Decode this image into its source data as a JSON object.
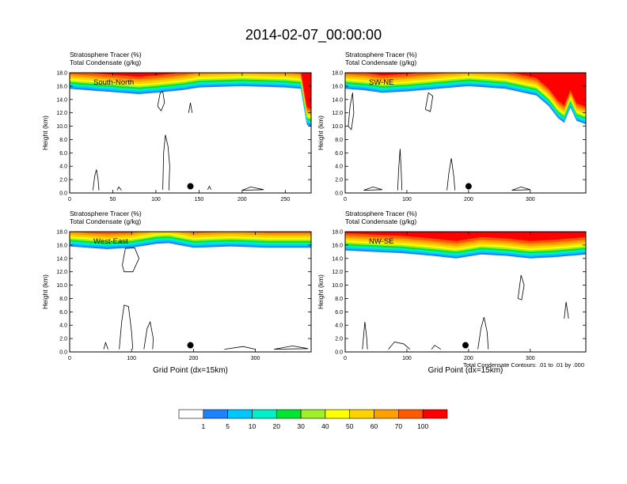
{
  "figure": {
    "title": "2014-02-07_00:00:00",
    "footnote": "Total Condensate Contours: .01 to .01 by .000"
  },
  "legend": {
    "thresholds": [
      "1",
      "5",
      "10",
      "20",
      "30",
      "40",
      "50",
      "60",
      "70",
      "100"
    ],
    "colors": [
      "#ffffff",
      "#1e82ff",
      "#00c8ff",
      "#00f0c8",
      "#00e632",
      "#a0f028",
      "#ffff00",
      "#ffd200",
      "#ffa000",
      "#ff5a00",
      "#ff0000"
    ]
  },
  "chart_data": [
    {
      "type": "contour",
      "panel_label": "South-North",
      "title_line1": "Stratosphere Tracer   (%)",
      "title_line2": "Total Condensate   (g/kg)",
      "ylabel": "Height (km)",
      "xlabel": "",
      "xlim": [
        0,
        280
      ],
      "ylim": [
        0,
        18
      ],
      "xticks": [
        0,
        50,
        100,
        150,
        200,
        250
      ],
      "yticks": [
        "0.0",
        "2.0",
        "4.0",
        "6.0",
        "8.0",
        "10.0",
        "12.0",
        "14.0",
        "16.0",
        "18.0"
      ],
      "marker_x": 140,
      "tropopause": [
        [
          0,
          15.6
        ],
        [
          20,
          15.4
        ],
        [
          40,
          15.2
        ],
        [
          60,
          15.0
        ],
        [
          80,
          14.8
        ],
        [
          100,
          15.0
        ],
        [
          130,
          15.4
        ],
        [
          150,
          15.8
        ],
        [
          200,
          16.0
        ],
        [
          250,
          15.8
        ],
        [
          268,
          15.6
        ],
        [
          272,
          12.5
        ],
        [
          275,
          10.2
        ],
        [
          280,
          10.0
        ]
      ],
      "contours": [
        [
          [
            102,
            13.0
          ],
          [
            105,
            15.0
          ],
          [
            108,
            15.2
          ],
          [
            110,
            13.5
          ],
          [
            106,
            12.3
          ],
          [
            102,
            13.0
          ]
        ],
        [
          [
            108,
            0.5
          ],
          [
            109,
            6.0
          ],
          [
            111,
            8.7
          ],
          [
            114,
            7.0
          ],
          [
            116,
            4.0
          ],
          [
            115,
            0.4
          ]
        ],
        [
          [
            27,
            0.4
          ],
          [
            29,
            2.5
          ],
          [
            31,
            3.5
          ],
          [
            33,
            2.0
          ],
          [
            34,
            0.4
          ]
        ],
        [
          [
            55,
            0.4
          ],
          [
            57,
            0.9
          ],
          [
            60,
            0.4
          ]
        ],
        [
          [
            160,
            0.5
          ],
          [
            162,
            1.0
          ],
          [
            164,
            0.5
          ]
        ],
        [
          [
            200,
            0.4
          ],
          [
            210,
            0.9
          ],
          [
            225,
            0.5
          ],
          [
            200,
            0.4
          ]
        ],
        [
          [
            138,
            12.0
          ],
          [
            140,
            13.5
          ],
          [
            142,
            12.0
          ]
        ]
      ]
    },
    {
      "type": "contour",
      "panel_label": "SW-NE",
      "title_line1": "Stratosphere Tracer   (%)",
      "title_line2": "Total Condensate   (g/kg)",
      "ylabel": "Height (km)",
      "xlabel": "",
      "xlim": [
        0,
        390
      ],
      "ylim": [
        0,
        18
      ],
      "xticks": [
        0,
        100,
        200,
        300
      ],
      "yticks": [
        "0.0",
        "2.0",
        "4.0",
        "6.0",
        "8.0",
        "10.0",
        "12.0",
        "14.0",
        "16.0",
        "18.0"
      ],
      "marker_x": 200,
      "tropopause": [
        [
          0,
          15.6
        ],
        [
          30,
          15.4
        ],
        [
          60,
          15.0
        ],
        [
          100,
          15.2
        ],
        [
          150,
          15.6
        ],
        [
          200,
          16.0
        ],
        [
          260,
          15.6
        ],
        [
          310,
          14.6
        ],
        [
          330,
          13.0
        ],
        [
          345,
          11.2
        ],
        [
          355,
          10.5
        ],
        [
          365,
          12.8
        ],
        [
          375,
          10.8
        ],
        [
          390,
          10.3
        ]
      ],
      "contours": [
        [
          [
            5,
            10.0
          ],
          [
            8,
            13.0
          ],
          [
            12,
            15.0
          ],
          [
            14,
            12.0
          ],
          [
            10,
            9.5
          ],
          [
            5,
            10.0
          ]
        ],
        [
          [
            85,
            0.4
          ],
          [
            87,
            4.0
          ],
          [
            89,
            6.6
          ],
          [
            91,
            3.0
          ],
          [
            92,
            0.4
          ]
        ],
        [
          [
            165,
            0.4
          ],
          [
            168,
            3.0
          ],
          [
            172,
            5.2
          ],
          [
            176,
            2.5
          ],
          [
            178,
            0.4
          ]
        ],
        [
          [
            130,
            12.5
          ],
          [
            135,
            15.0
          ],
          [
            142,
            14.5
          ],
          [
            138,
            12.2
          ],
          [
            130,
            12.5
          ]
        ],
        [
          [
            270,
            0.4
          ],
          [
            285,
            0.9
          ],
          [
            300,
            0.5
          ],
          [
            270,
            0.4
          ]
        ],
        [
          [
            30,
            0.4
          ],
          [
            45,
            0.9
          ],
          [
            60,
            0.5
          ],
          [
            30,
            0.4
          ]
        ]
      ]
    },
    {
      "type": "contour",
      "panel_label": "West-East",
      "title_line1": "Stratosphere Tracer   (%)",
      "title_line2": "Total Condensate   (g/kg)",
      "ylabel": "Height (km)",
      "xlabel": "Grid Point (dx=15km)",
      "xlim": [
        0,
        390
      ],
      "ylim": [
        0,
        18
      ],
      "xticks": [
        0,
        100,
        200,
        300
      ],
      "yticks": [
        "0.0",
        "2.0",
        "4.0",
        "6.0",
        "8.0",
        "10.0",
        "12.0",
        "14.0",
        "16.0",
        "18.0"
      ],
      "marker_x": 195,
      "tropopause": [
        [
          0,
          15.8
        ],
        [
          60,
          15.4
        ],
        [
          100,
          15.6
        ],
        [
          140,
          16.2
        ],
        [
          160,
          16.3
        ],
        [
          200,
          15.6
        ],
        [
          260,
          15.8
        ],
        [
          320,
          15.6
        ],
        [
          390,
          15.6
        ]
      ],
      "contours": [
        [
          [
            85,
            13.0
          ],
          [
            90,
            15.5
          ],
          [
            105,
            15.6
          ],
          [
            112,
            14.0
          ],
          [
            102,
            12.0
          ],
          [
            88,
            12.0
          ],
          [
            85,
            13.0
          ]
        ],
        [
          [
            80,
            0.4
          ],
          [
            84,
            4.5
          ],
          [
            88,
            7.0
          ],
          [
            95,
            6.8
          ],
          [
            100,
            3.0
          ],
          [
            102,
            0.4
          ]
        ],
        [
          [
            120,
            0.4
          ],
          [
            125,
            3.5
          ],
          [
            130,
            4.5
          ],
          [
            135,
            2.0
          ],
          [
            134,
            0.4
          ]
        ],
        [
          [
            250,
            0.4
          ],
          [
            280,
            0.8
          ],
          [
            300,
            0.4
          ]
        ],
        [
          [
            330,
            0.4
          ],
          [
            360,
            0.9
          ],
          [
            385,
            0.5
          ],
          [
            330,
            0.4
          ]
        ],
        [
          [
            55,
            0.4
          ],
          [
            58,
            1.4
          ],
          [
            62,
            0.4
          ]
        ]
      ]
    },
    {
      "type": "contour",
      "panel_label": "NW-SE",
      "title_line1": "Stratosphere Tracer   (%)",
      "title_line2": "Total Condensate   (g/kg)",
      "ylabel": "Height (km)",
      "xlabel": "Grid Point (dx=15km)",
      "xlim": [
        0,
        390
      ],
      "ylim": [
        0,
        18
      ],
      "xticks": [
        0,
        100,
        200,
        300
      ],
      "yticks": [
        "0.0",
        "2.0",
        "4.0",
        "6.0",
        "8.0",
        "10.0",
        "12.0",
        "14.0",
        "16.0",
        "18.0"
      ],
      "marker_x": 195,
      "tropopause": [
        [
          0,
          15.2
        ],
        [
          40,
          15.0
        ],
        [
          90,
          14.8
        ],
        [
          140,
          14.4
        ],
        [
          180,
          14.0
        ],
        [
          220,
          14.6
        ],
        [
          260,
          14.4
        ],
        [
          300,
          14.0
        ],
        [
          340,
          14.2
        ],
        [
          390,
          14.6
        ]
      ],
      "contours": [
        [
          [
            28,
            0.4
          ],
          [
            32,
            4.5
          ],
          [
            35,
            2.0
          ],
          [
            36,
            0.4
          ]
        ],
        [
          [
            70,
            0.4
          ],
          [
            80,
            1.5
          ],
          [
            95,
            1.2
          ],
          [
            105,
            0.4
          ]
        ],
        [
          [
            215,
            0.4
          ],
          [
            220,
            3.5
          ],
          [
            225,
            5.2
          ],
          [
            230,
            3.0
          ],
          [
            232,
            0.4
          ]
        ],
        [
          [
            280,
            8.0
          ],
          [
            285,
            11.5
          ],
          [
            290,
            10.0
          ],
          [
            286,
            7.8
          ],
          [
            280,
            8.0
          ]
        ],
        [
          [
            355,
            5.0
          ],
          [
            358,
            7.5
          ],
          [
            362,
            5.0
          ]
        ],
        [
          [
            140,
            0.4
          ],
          [
            145,
            1.0
          ],
          [
            155,
            0.4
          ]
        ]
      ]
    }
  ]
}
